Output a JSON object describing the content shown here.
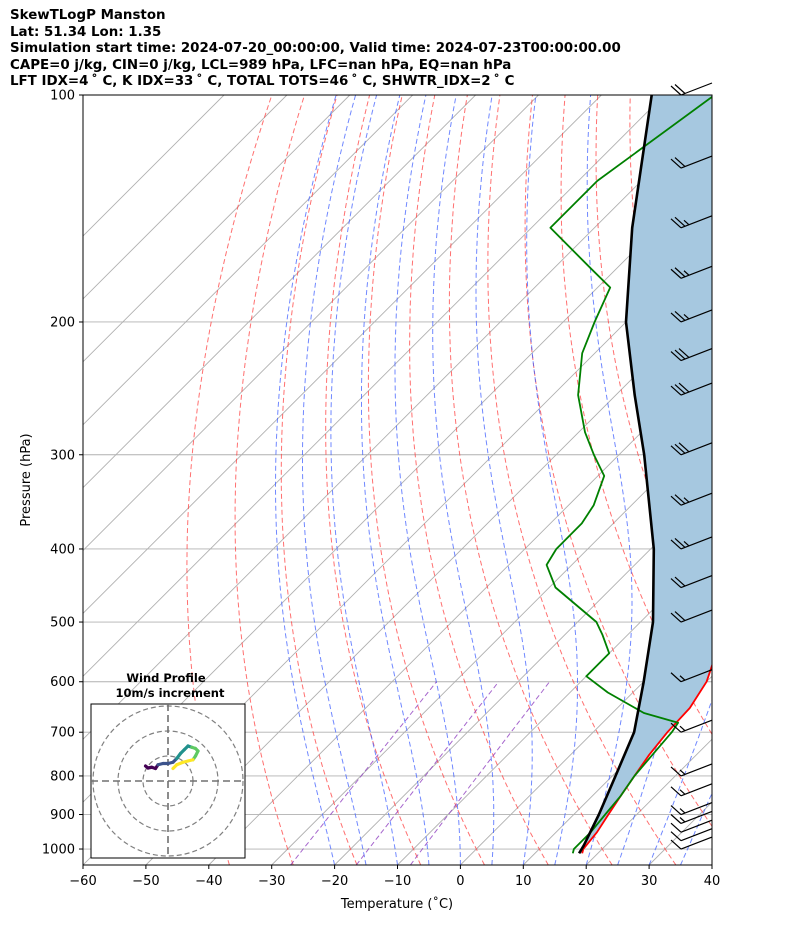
{
  "header": {
    "line1": "SkewTLogP Manston",
    "line2": "Lat: 51.34   Lon: 1.35",
    "line3": "Simulation start time: 2024-07-20_00:00:00, Valid time: 2024-07-23T00:00:00.00",
    "line4": "CAPE=0 j/kg, CIN=0 j/kg, LCL=989 hPa, LFC=nan hPa, EQ=nan hPa",
    "line5": "LFT IDX=4 ˚ C, K IDX=33 ˚ C, TOTAL TOTS=46 ˚ C, SHWTR_IDX=2 ˚ C"
  },
  "chart_data": {
    "type": "line",
    "subtype": "skew-t log-p",
    "xlabel": "Temperature (˚C)",
    "ylabel": "Pressure (hPa)",
    "xlim": [
      -60,
      40
    ],
    "ylim": [
      1050,
      100
    ],
    "x_ticks": [
      "−60",
      "−50",
      "−40",
      "−30",
      "−20",
      "−10",
      "0",
      "10",
      "20",
      "30",
      "40"
    ],
    "y_ticks": [
      {
        "p": 100,
        "label": "100"
      },
      {
        "p": 200,
        "label": "200"
      },
      {
        "p": 300,
        "label": "300"
      },
      {
        "p": 400,
        "label": "400"
      },
      {
        "p": 500,
        "label": "500"
      },
      {
        "p": 600,
        "label": "600"
      },
      {
        "p": 700,
        "label": "700"
      },
      {
        "p": 800,
        "label": "800"
      },
      {
        "p": 900,
        "label": "900"
      },
      {
        "p": 1000,
        "label": "1000"
      }
    ],
    "y_scale": "log",
    "grid": true,
    "series": [
      {
        "role": "temperature",
        "color": "#ff0000",
        "points": [
          [
            1013,
            17.5
          ],
          [
            1000,
            17
          ],
          [
            950,
            16.5
          ],
          [
            900,
            15.5
          ],
          [
            850,
            14.5
          ],
          [
            800,
            13.5
          ],
          [
            750,
            12.5
          ],
          [
            700,
            11.8
          ],
          [
            650,
            11.5
          ],
          [
            600,
            10
          ],
          [
            550,
            7
          ],
          [
            500,
            3
          ],
          [
            450,
            -1
          ],
          [
            400,
            -5
          ],
          [
            350,
            -10
          ],
          [
            300,
            -15
          ],
          [
            280,
            -18
          ],
          [
            250,
            -22
          ],
          [
            230,
            -25
          ],
          [
            210,
            -28
          ],
          [
            200,
            -29
          ],
          [
            180,
            -29
          ],
          [
            160,
            -31
          ],
          [
            140,
            -34
          ],
          [
            120,
            -36
          ],
          [
            100,
            -38
          ]
        ]
      },
      {
        "role": "dewpoint",
        "color": "#008000",
        "points": [
          [
            1013,
            16
          ],
          [
            1000,
            15.5
          ],
          [
            950,
            15.5
          ],
          [
            900,
            15
          ],
          [
            850,
            14.5
          ],
          [
            800,
            13.5
          ],
          [
            750,
            13
          ],
          [
            700,
            12.5
          ],
          [
            680,
            12
          ],
          [
            660,
            5
          ],
          [
            620,
            -4
          ],
          [
            590,
            -10
          ],
          [
            550,
            -10
          ],
          [
            520,
            -14
          ],
          [
            500,
            -17
          ],
          [
            450,
            -29
          ],
          [
            420,
            -34
          ],
          [
            400,
            -35
          ],
          [
            370,
            -35
          ],
          [
            350,
            -36
          ],
          [
            320,
            -39
          ],
          [
            300,
            -44
          ],
          [
            280,
            -49
          ],
          [
            250,
            -56
          ],
          [
            220,
            -62
          ],
          [
            200,
            -65
          ],
          [
            180,
            -68
          ],
          [
            170,
            -74
          ],
          [
            150,
            -87
          ],
          [
            130,
            -87
          ],
          [
            100,
            -82
          ]
        ]
      },
      {
        "role": "parcel",
        "color": "#000000",
        "points": [
          [
            1013,
            17
          ],
          [
            989,
            16.5
          ],
          [
            900,
            14
          ],
          [
            800,
            10.5
          ],
          [
            700,
            6.5
          ],
          [
            600,
            0
          ],
          [
            500,
            -8
          ],
          [
            400,
            -19.5
          ],
          [
            300,
            -36
          ],
          [
            250,
            -47
          ],
          [
            200,
            -60
          ],
          [
            150,
            -74
          ],
          [
            100,
            -92
          ]
        ]
      }
    ],
    "shading": {
      "between": [
        "temperature",
        "parcel"
      ],
      "color": "#a6c8e0"
    },
    "wind_barbs": [
      {
        "p": 1000,
        "flags": 0,
        "full": 1,
        "half": 0
      },
      {
        "p": 975,
        "flags": 0,
        "full": 1,
        "half": 0
      },
      {
        "p": 950,
        "flags": 0,
        "full": 1,
        "half": 0
      },
      {
        "p": 925,
        "flags": 0,
        "full": 1,
        "half": 1
      },
      {
        "p": 900,
        "flags": 0,
        "full": 1,
        "half": 1
      },
      {
        "p": 850,
        "flags": 0,
        "full": 1,
        "half": 1
      },
      {
        "p": 800,
        "flags": 0,
        "full": 1,
        "half": 1
      },
      {
        "p": 700,
        "flags": 0,
        "full": 1,
        "half": 1
      },
      {
        "p": 600,
        "flags": 0,
        "full": 1,
        "half": 1
      },
      {
        "p": 500,
        "flags": 0,
        "full": 2,
        "half": 0
      },
      {
        "p": 450,
        "flags": 0,
        "full": 2,
        "half": 0
      },
      {
        "p": 400,
        "flags": 0,
        "full": 2,
        "half": 1
      },
      {
        "p": 350,
        "flags": 0,
        "full": 2,
        "half": 1
      },
      {
        "p": 300,
        "flags": 0,
        "full": 3,
        "half": 0
      },
      {
        "p": 250,
        "flags": 0,
        "full": 3,
        "half": 0
      },
      {
        "p": 225,
        "flags": 0,
        "full": 3,
        "half": 0
      },
      {
        "p": 200,
        "flags": 0,
        "full": 2,
        "half": 1
      },
      {
        "p": 175,
        "flags": 0,
        "full": 2,
        "half": 1
      },
      {
        "p": 150,
        "flags": 0,
        "full": 2,
        "half": 1
      },
      {
        "p": 125,
        "flags": 0,
        "full": 2,
        "half": 0
      },
      {
        "p": 100,
        "flags": 0,
        "full": 2,
        "half": 0
      }
    ],
    "hodograph": {
      "title": "Wind Profile",
      "subtitle": "10m/s increment",
      "rings_ms": [
        10,
        20,
        30
      ],
      "colormap": [
        "#440154",
        "#3b528b",
        "#21918c",
        "#5ec962",
        "#fde725"
      ],
      "trace": [
        [
          -9,
          6
        ],
        [
          -8,
          5.2
        ],
        [
          -6.5,
          5.5
        ],
        [
          -5,
          5
        ],
        [
          -4,
          6.5
        ],
        [
          -2,
          7
        ],
        [
          0,
          7
        ],
        [
          2,
          7.5
        ],
        [
          3.5,
          9
        ],
        [
          5,
          11
        ],
        [
          6.5,
          12.5
        ],
        [
          8,
          14
        ],
        [
          9.5,
          13.5
        ],
        [
          11,
          13
        ],
        [
          12,
          12
        ],
        [
          11,
          10
        ],
        [
          10,
          8.5
        ],
        [
          8,
          8
        ],
        [
          6,
          7.5
        ],
        [
          3.5,
          6.5
        ],
        [
          2,
          5
        ]
      ]
    },
    "overlay_lines": {
      "isotherm_color": "#b0b0b0",
      "dry_adiabat_color": "#ff4040",
      "moist_adiabat_color": "#4060ff",
      "mixing_ratio_color": "#9040c0"
    }
  }
}
